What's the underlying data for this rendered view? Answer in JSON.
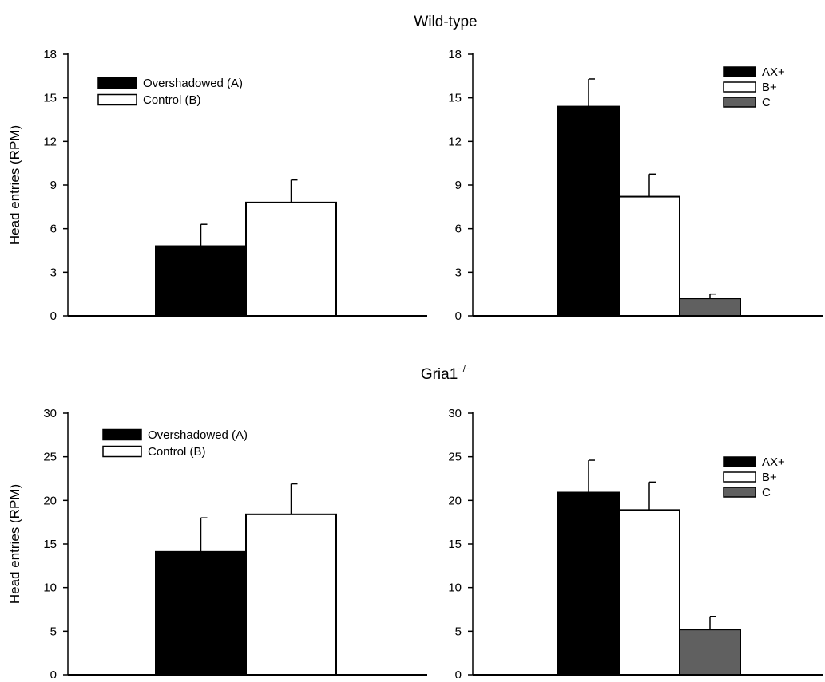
{
  "figure": {
    "top_title": "Wild-type",
    "bottom_title_main": "Gria1",
    "bottom_title_sup": "−/−",
    "ylabel": "Head entries (RPM)"
  },
  "colors": {
    "black": "#000000",
    "white": "#ffffff",
    "gray": "#606060"
  },
  "chart_data": [
    {
      "type": "bar",
      "panel": "wild-type-left",
      "ylabel": "Head entries (RPM)",
      "ylim": [
        0,
        18
      ],
      "yticks": [
        0,
        3,
        6,
        9,
        12,
        15,
        18
      ],
      "legend_position": "top-left",
      "series": [
        {
          "name": "Overshadowed (A)",
          "value": 4.8,
          "error": 1.5,
          "color": "#000000"
        },
        {
          "name": "Control (B)",
          "value": 7.8,
          "error": 1.55,
          "color": "#ffffff"
        }
      ]
    },
    {
      "type": "bar",
      "panel": "wild-type-right",
      "ylim": [
        0,
        18
      ],
      "yticks": [
        0,
        3,
        6,
        9,
        12,
        15,
        18
      ],
      "legend_position": "top-right",
      "series": [
        {
          "name": "AX+",
          "value": 14.4,
          "error": 1.9,
          "color": "#000000"
        },
        {
          "name": "B+",
          "value": 8.2,
          "error": 1.55,
          "color": "#ffffff"
        },
        {
          "name": "C",
          "value": 1.2,
          "error": 0.3,
          "color": "#606060"
        }
      ]
    },
    {
      "type": "bar",
      "panel": "gria1-left",
      "ylabel": "Head entries (RPM)",
      "ylim": [
        0,
        30
      ],
      "yticks": [
        0,
        5,
        10,
        15,
        20,
        25,
        30
      ],
      "legend_position": "top-left",
      "series": [
        {
          "name": "Overshadowed (A)",
          "value": 14.1,
          "error": 3.9,
          "color": "#000000"
        },
        {
          "name": "Control (B)",
          "value": 18.4,
          "error": 3.5,
          "color": "#ffffff"
        }
      ]
    },
    {
      "type": "bar",
      "panel": "gria1-right",
      "ylim": [
        0,
        30
      ],
      "yticks": [
        0,
        5,
        10,
        15,
        20,
        25,
        30
      ],
      "legend_position": "top-right",
      "series": [
        {
          "name": "AX+",
          "value": 20.9,
          "error": 3.7,
          "color": "#000000"
        },
        {
          "name": "B+",
          "value": 18.9,
          "error": 3.2,
          "color": "#ffffff"
        },
        {
          "name": "C",
          "value": 5.2,
          "error": 1.5,
          "color": "#606060"
        }
      ]
    }
  ]
}
